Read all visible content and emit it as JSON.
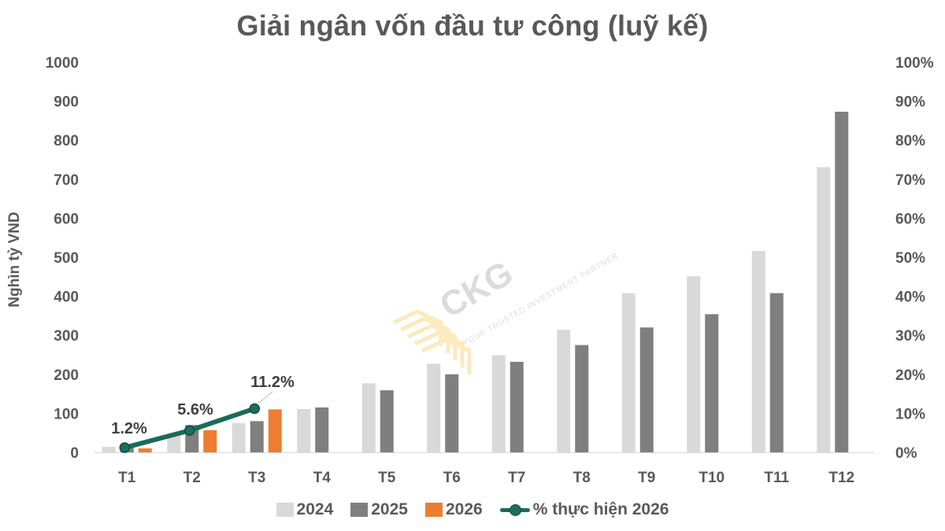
{
  "title": "Giải ngân vốn đầu tư công (luỹ kế)",
  "watermark": {
    "brand": "CKG",
    "tagline": "YOUR TRUSTED INVESTMENT PARTNER"
  },
  "legend": {
    "s2024": "2024",
    "s2025": "2025",
    "s2026": "2026",
    "line": "% thực hiện 2026"
  },
  "colors": {
    "s2024": "#d9d9d9",
    "s2025": "#7f7f7f",
    "s2026": "#ed7d31",
    "line": "#1a6b5a"
  },
  "chart_data": {
    "type": "bar",
    "title": "Giải ngân vốn đầu tư công (luỹ kế)",
    "xlabel": "",
    "ylabel": "Nghìn tỷ VND",
    "y2label": "",
    "ylim": [
      0,
      1000
    ],
    "y2lim": [
      0,
      100
    ],
    "yticks": [
      "0",
      "100",
      "200",
      "300",
      "400",
      "500",
      "600",
      "700",
      "800",
      "900",
      "1000"
    ],
    "y2ticks": [
      "0%",
      "10%",
      "20%",
      "30%",
      "40%",
      "50%",
      "60%",
      "70%",
      "80%",
      "90%",
      "100%"
    ],
    "categories": [
      "T1",
      "T2",
      "T3",
      "T4",
      "T5",
      "T6",
      "T7",
      "T8",
      "T9",
      "T10",
      "T11",
      "T12"
    ],
    "series": [
      {
        "name": "2024",
        "type": "bar",
        "values": [
          14,
          45,
          75,
          111,
          177,
          227,
          249,
          314,
          408,
          451,
          516,
          731
        ]
      },
      {
        "name": "2025",
        "type": "bar",
        "values": [
          20,
          70,
          80,
          115,
          159,
          200,
          232,
          275,
          320,
          354,
          408,
          873
        ]
      },
      {
        "name": "2026",
        "type": "bar",
        "values": [
          10,
          57,
          110,
          null,
          null,
          null,
          null,
          null,
          null,
          null,
          null,
          null
        ]
      },
      {
        "name": "% thực hiện 2026",
        "type": "line",
        "axis": "secondary",
        "values": [
          1.2,
          5.6,
          11.2,
          null,
          null,
          null,
          null,
          null,
          null,
          null,
          null,
          null
        ]
      }
    ],
    "data_labels": [
      "1.2%",
      "5.6%",
      "11.2%"
    ],
    "grid": false,
    "legend_position": "bottom"
  }
}
